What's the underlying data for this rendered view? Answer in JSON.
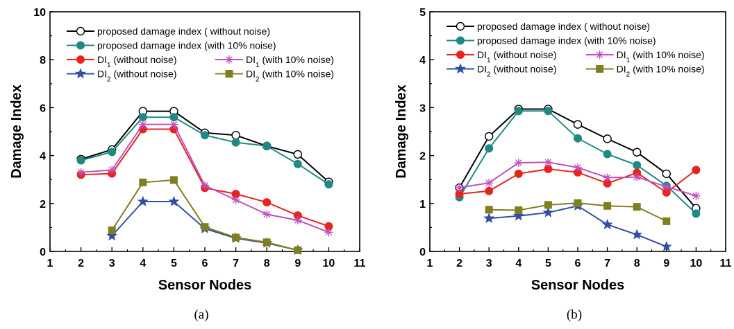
{
  "chart_data": [
    {
      "type": "line",
      "caption": "(a)",
      "xlabel": "Sensor Nodes",
      "ylabel": "Damage Index",
      "xlim": [
        1,
        11
      ],
      "ylim": [
        0,
        10
      ],
      "xticks": [
        1,
        2,
        3,
        4,
        5,
        6,
        7,
        8,
        9,
        10,
        11
      ],
      "yticks": [
        0,
        2,
        4,
        6,
        8,
        10
      ],
      "legend_position": "top",
      "series": [
        {
          "name": "proposed damage index ( without noise)",
          "color": "#000000",
          "marker": "open-circle",
          "x": [
            2,
            3,
            4,
            5,
            6,
            7,
            8,
            9,
            10
          ],
          "y": [
            3.85,
            4.25,
            5.85,
            5.85,
            4.95,
            4.85,
            4.4,
            4.05,
            2.9
          ]
        },
        {
          "name": "proposed damage index (with 10% noise)",
          "color": "#1f8a82",
          "marker": "filled-circle",
          "x": [
            2,
            3,
            4,
            5,
            6,
            7,
            8,
            9,
            10
          ],
          "y": [
            3.8,
            4.15,
            5.6,
            5.6,
            4.85,
            4.55,
            4.4,
            3.65,
            2.8
          ]
        },
        {
          "name": "DI1 (without noise)",
          "color": "#e8241f",
          "marker": "filled-circle",
          "x": [
            2,
            3,
            4,
            5,
            6,
            7,
            8,
            9,
            10
          ],
          "y": [
            3.2,
            3.25,
            5.1,
            5.1,
            2.65,
            2.4,
            2.05,
            1.5,
            1.05
          ]
        },
        {
          "name": "DI1 (with 10% noise)",
          "color": "#c050c0",
          "marker": "asterisk",
          "x": [
            2,
            3,
            4,
            5,
            6,
            7,
            8,
            9,
            10
          ],
          "y": [
            3.3,
            3.4,
            5.3,
            5.3,
            2.75,
            2.15,
            1.55,
            1.3,
            0.8
          ]
        },
        {
          "name": "DI2 (without noise)",
          "color": "#2f4fa6",
          "marker": "star",
          "x": [
            3,
            4,
            5,
            6,
            7,
            8,
            9
          ],
          "y": [
            0.65,
            2.08,
            2.08,
            0.95,
            0.55,
            0.35,
            0.05
          ]
        },
        {
          "name": "DI2 (with 10% noise)",
          "color": "#7f7f1f",
          "marker": "square",
          "x": [
            3,
            4,
            5,
            6,
            7,
            8,
            9
          ],
          "y": [
            0.88,
            2.88,
            2.98,
            1.02,
            0.58,
            0.38,
            0.05
          ]
        }
      ]
    },
    {
      "type": "line",
      "caption": "(b)",
      "xlabel": "Sensor Nodes",
      "ylabel": "Damage Index",
      "xlim": [
        1,
        11
      ],
      "ylim": [
        0,
        5
      ],
      "xticks": [
        1,
        2,
        3,
        4,
        5,
        6,
        7,
        8,
        9,
        10,
        11
      ],
      "yticks": [
        0,
        1,
        2,
        3,
        4,
        5
      ],
      "legend_position": "top",
      "series": [
        {
          "name": "proposed damage index ( without noise)",
          "color": "#000000",
          "marker": "open-circle",
          "x": [
            2,
            3,
            4,
            5,
            6,
            7,
            8,
            9,
            10
          ],
          "y": [
            1.33,
            2.4,
            2.97,
            2.97,
            2.65,
            2.35,
            2.07,
            1.62,
            0.9
          ]
        },
        {
          "name": "proposed damage index (with 10% noise)",
          "color": "#1f8a82",
          "marker": "filled-circle",
          "x": [
            2,
            3,
            4,
            5,
            6,
            7,
            8,
            9,
            10
          ],
          "y": [
            1.13,
            2.15,
            2.93,
            2.93,
            2.36,
            2.03,
            1.8,
            1.37,
            0.79
          ]
        },
        {
          "name": "DI1 (without noise)",
          "color": "#e8241f",
          "marker": "filled-circle",
          "x": [
            2,
            3,
            4,
            5,
            6,
            7,
            8,
            9,
            10
          ],
          "y": [
            1.2,
            1.26,
            1.62,
            1.72,
            1.65,
            1.42,
            1.64,
            1.23,
            1.7
          ]
        },
        {
          "name": "DI1 (with 10% noise)",
          "color": "#c050c0",
          "marker": "asterisk",
          "x": [
            2,
            3,
            4,
            5,
            6,
            7,
            8,
            9,
            10
          ],
          "y": [
            1.33,
            1.43,
            1.85,
            1.86,
            1.75,
            1.54,
            1.55,
            1.35,
            1.16
          ]
        },
        {
          "name": "DI2 (without noise)",
          "color": "#2f4fa6",
          "marker": "star",
          "x": [
            3,
            4,
            5,
            6,
            7,
            8,
            9
          ],
          "y": [
            0.69,
            0.74,
            0.81,
            0.95,
            0.56,
            0.35,
            0.1
          ]
        },
        {
          "name": "DI2 (with 10% noise)",
          "color": "#7f7f1f",
          "marker": "square",
          "x": [
            3,
            4,
            5,
            6,
            7,
            8,
            9
          ],
          "y": [
            0.87,
            0.86,
            0.97,
            1.01,
            0.95,
            0.93,
            0.63
          ]
        }
      ]
    }
  ]
}
